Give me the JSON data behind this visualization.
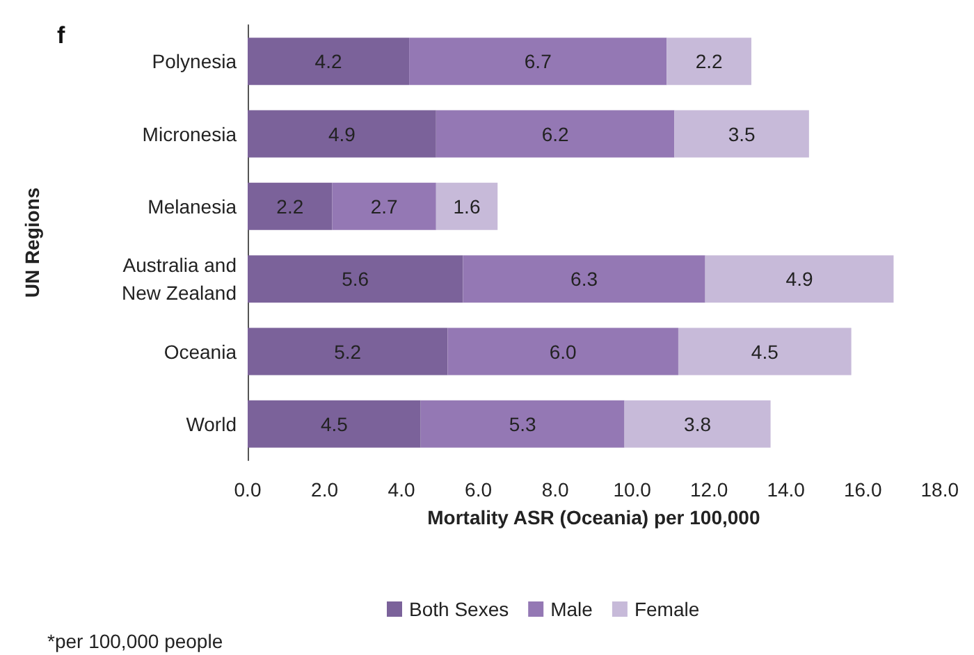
{
  "chart_data": {
    "type": "bar",
    "orientation": "horizontal",
    "stacked": true,
    "title": "f",
    "xlabel": "Mortality ASR (Oceania) per 100,000",
    "ylabel": "UN Regions",
    "annotations": [
      "*per 100,000 people"
    ],
    "categories": [
      "Polynesia",
      "Micronesia",
      "Melanesia",
      "Australia and New Zealand",
      "Oceania",
      "World"
    ],
    "series": [
      {
        "name": "Both Sexes",
        "color": "#7b629a",
        "values": [
          4.2,
          4.9,
          2.2,
          5.6,
          5.2,
          4.5
        ],
        "value_labels": [
          "4.2",
          "4.9",
          "2.2",
          "5.6",
          "5.2",
          "4.5"
        ]
      },
      {
        "name": "Male",
        "color": "#9478b4",
        "values": [
          6.7,
          6.2,
          2.7,
          6.3,
          6.0,
          5.3
        ],
        "value_labels": [
          "6.7",
          "6.2",
          "2.7",
          "6.3",
          "6.0",
          "5.3"
        ]
      },
      {
        "name": "Female",
        "color": "#c7bad9",
        "values": [
          2.2,
          3.5,
          1.6,
          4.9,
          4.5,
          3.8
        ],
        "value_labels": [
          "2.2",
          "3.5",
          "1.6",
          "4.9",
          "4.5",
          "3.8"
        ]
      }
    ],
    "xlim": [
      0,
      18
    ],
    "xticks": [
      {
        "value": 0,
        "label": "0.0"
      },
      {
        "value": 2,
        "label": "2.0"
      },
      {
        "value": 4,
        "label": "4.0"
      },
      {
        "value": 6,
        "label": "6.0"
      },
      {
        "value": 8,
        "label": "8.0"
      },
      {
        "value": 10,
        "label": "10.0"
      },
      {
        "value": 12,
        "label": "12.0"
      },
      {
        "value": 14,
        "label": "14.0"
      },
      {
        "value": 16,
        "label": "16.0"
      },
      {
        "value": 18,
        "label": "18.0"
      }
    ],
    "grid": false,
    "legend": "bottom"
  }
}
